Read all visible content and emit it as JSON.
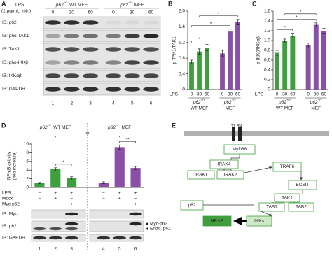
{
  "panel_labels": [
    "A",
    "B",
    "C",
    "D",
    "E"
  ],
  "blot_a": {
    "treatment": "LPS",
    "treatment_detail": "(1 μg/mL, min)",
    "groups": [
      {
        "gene": "p62",
        "genotype": "+/+",
        "label": "WT MEF"
      },
      {
        "gene": "p62",
        "genotype": "−/−",
        "label": "MEF"
      }
    ],
    "lanes": [
      0,
      30,
      60,
      0,
      30,
      60
    ],
    "rows": [
      "IB: p62",
      "IB: pho-TAK1",
      "IB: TAK1",
      "IB: pho-IKKβ",
      "IB: IKKαβ",
      "IB: GAPDH"
    ],
    "lane_numbers": [
      1,
      2,
      3,
      4,
      5,
      6
    ]
  },
  "chart_data": [
    {
      "type": "bar",
      "ylabel": [
        "p-TAK1/TAK1"
      ],
      "xlabel": "LPS",
      "categories": [
        "0",
        "30",
        "60",
        "0",
        "30",
        "60"
      ],
      "groups": [
        {
          "gene": "p62",
          "genotype": "+/+",
          "label": "WT MEF"
        },
        {
          "gene": "p62",
          "genotype": "−/−",
          "label": "MEF"
        }
      ],
      "values": [
        0.7,
        0.97,
        1.07,
        0.92,
        1.48,
        1.72
      ],
      "errors": [
        0.05,
        0.07,
        0.08,
        0.08,
        0.06,
        0.07
      ],
      "bar_colors": [
        "#3f9f3f",
        "#3f9f3f",
        "#3f9f3f",
        "#8a4fa6",
        "#8a4fa6",
        "#8a4fa6"
      ],
      "ylim": [
        0,
        2
      ],
      "yticks": [
        0,
        0.4,
        0.8,
        1.2,
        1.6,
        {
          "value": 2,
          "label": "2.0"
        }
      ],
      "annotations": [
        "*",
        "*",
        "*"
      ]
    },
    {
      "type": "bar",
      "ylabel": [
        "p-IKKβ/IKKαβ"
      ],
      "xlabel": "LPS",
      "categories": [
        "0",
        "30",
        "60",
        "0",
        "30",
        "60"
      ],
      "groups": [
        {
          "gene": "p62",
          "genotype": "+/+",
          "label": "WT MEF"
        },
        {
          "gene": "p62",
          "genotype": "−/−",
          "label": "MEF"
        }
      ],
      "values": [
        0.75,
        1.0,
        1.1,
        0.9,
        1.32,
        1.2
      ],
      "errors": [
        0.05,
        0.03,
        0.05,
        0.05,
        0.04,
        0.05
      ],
      "bar_colors": [
        "#3f9f3f",
        "#3f9f3f",
        "#3f9f3f",
        "#8a4fa6",
        "#8a4fa6",
        "#8a4fa6"
      ],
      "ylim": [
        0,
        1.6
      ],
      "yticks": [
        0,
        0.2,
        0.4,
        0.6,
        0.8,
        {
          "value": 1,
          "label": "1.0"
        },
        1.2,
        1.4,
        1.6
      ],
      "annotations": [
        "*",
        "*",
        "*"
      ]
    },
    {
      "type": "bar",
      "ylabel": [
        "NF-κB activity",
        "(fold increase)"
      ],
      "groups": [
        {
          "gene": "p62",
          "genotype": "+/+",
          "label": "WT MEF"
        },
        {
          "gene": "p62",
          "genotype": "−/−",
          "label": "MEF"
        }
      ],
      "values": [
        1.0,
        4.2,
        2.1,
        1.1,
        9.3,
        4.5
      ],
      "errors": [
        0.15,
        0.35,
        0.35,
        0.2,
        0.5,
        0.35
      ],
      "bar_colors": [
        "#3f9f3f",
        "#3f9f3f",
        "#3f9f3f",
        "#8a4fa6",
        "#8a4fa6",
        "#8a4fa6"
      ],
      "ylim": [
        0,
        10
      ],
      "yticks": [
        0,
        2,
        4,
        6,
        8,
        10
      ],
      "annotations": [
        "*",
        "**",
        "**"
      ]
    }
  ],
  "panel_d": {
    "conditions": [
      {
        "label": "LPS",
        "values": [
          "−",
          "+",
          "+",
          "−",
          "+",
          "+"
        ]
      },
      {
        "label": "Mock",
        "values": [
          "−",
          "+",
          "−",
          "−",
          "+",
          "−"
        ]
      },
      {
        "label": "Myc-p62",
        "values": [
          "−",
          "−",
          "+",
          "−",
          "−",
          "+"
        ]
      }
    ],
    "blots": [
      "IB: Myc",
      "IB: p62",
      "IB: GAPDH"
    ],
    "band_labels": [
      "Myc-p62",
      "Endo. p62"
    ],
    "lane_numbers": [
      1,
      2,
      3,
      4,
      5,
      6
    ]
  },
  "diagram_e": {
    "membrane": "TLR4",
    "nodes": [
      "MyD88",
      "IRAK4",
      "IRAK1",
      "IRAK2",
      "TRAF6",
      "p62",
      "ECSIT",
      "TAK1",
      "TAB1",
      "TAB2",
      "IKKs",
      "NF-κB"
    ]
  }
}
